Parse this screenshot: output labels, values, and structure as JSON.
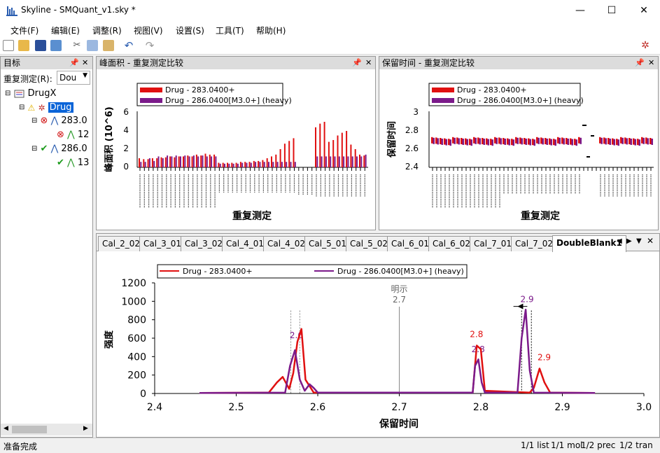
{
  "window": {
    "title": "Skyline - SMQuant_v1.sky *"
  },
  "menu": [
    "文件(F)",
    "编辑(E)",
    "调整(R)",
    "视图(V)",
    "设置(S)",
    "工具(T)",
    "帮助(H)"
  ],
  "targets": {
    "header": "目标",
    "replicate_label": "重复测定(R):",
    "replicate_value": "Dou",
    "tree": [
      "DrugX",
      "Drug",
      "283.0",
      "12",
      "286.0",
      "13"
    ]
  },
  "peak_area": {
    "header": "峰面积 - 重复测定比较",
    "legend": [
      "Drug - 283.0400+",
      "Drug - 286.0400[M3.0+] (heavy)"
    ],
    "ylabel": "峰面积 (10^6)",
    "xlabel": "重复测定",
    "yticks": [
      "0",
      "2",
      "4",
      "6"
    ]
  },
  "retention": {
    "header": "保留时间 - 重复测定比较",
    "legend": [
      "Drug - 283.0400+",
      "Drug - 286.0400[M3.0+] (heavy)"
    ],
    "ylabel": "保留时间",
    "xlabel": "重复测定",
    "yticks": [
      "2.4",
      "2.6",
      "2.8",
      "3"
    ]
  },
  "chromatogram": {
    "tabs": [
      "Cal_2_02",
      "Cal_3_01",
      "Cal_3_02",
      "Cal_4_01",
      "Cal_4_02",
      "Cal_5_01",
      "Cal_5_02",
      "Cal_6_01",
      "Cal_6_02",
      "Cal_7_01",
      "Cal_7_02",
      "DoubleBlank1"
    ],
    "legend": [
      "Drug - 283.0400+",
      "Drug - 286.0400[M3.0+] (heavy)"
    ],
    "ylabel": "强度",
    "xlabel": "保留时间",
    "yticks": [
      "0",
      "200",
      "400",
      "600",
      "800",
      "1000",
      "1200"
    ],
    "xticks": [
      "2.4",
      "2.5",
      "2.6",
      "2.7",
      "2.8",
      "2.9",
      "3.0"
    ],
    "annotation": "明示",
    "annotation_value": "2.7",
    "peak_labels": [
      "2.6",
      "2.8",
      "2.8",
      "2.9",
      "2.9"
    ]
  },
  "chart_data": {
    "type": "line",
    "xlabel": "保留时间",
    "ylabel": "强度",
    "xlim": [
      2.4,
      3.0
    ],
    "ylim": [
      0,
      1200
    ],
    "series": [
      {
        "name": "Drug - 283.0400+",
        "color": "#e01010",
        "x": [
          2.455,
          2.54,
          2.55,
          2.557,
          2.565,
          2.57,
          2.575,
          2.58,
          2.585,
          2.595,
          2.79,
          2.795,
          2.8,
          2.805,
          2.86,
          2.865,
          2.872,
          2.878,
          2.885,
          2.94
        ],
        "y": [
          5,
          10,
          120,
          180,
          50,
          220,
          560,
          700,
          150,
          10,
          10,
          520,
          480,
          30,
          10,
          60,
          270,
          120,
          10,
          5
        ]
      },
      {
        "name": "Drug - 286.0400[M3.0+] (heavy)",
        "color": "#7b1a8a",
        "x": [
          2.455,
          2.56,
          2.566,
          2.572,
          2.578,
          2.584,
          2.59,
          2.595,
          2.6,
          2.79,
          2.793,
          2.797,
          2.801,
          2.805,
          2.845,
          2.85,
          2.855,
          2.86,
          2.865,
          2.94
        ],
        "y": [
          5,
          10,
          300,
          470,
          150,
          30,
          100,
          60,
          10,
          10,
          300,
          370,
          120,
          10,
          10,
          600,
          910,
          250,
          10,
          5
        ]
      }
    ]
  },
  "status": {
    "left": "准备完成",
    "list": "1/1 list",
    "mol": "1/1 mol",
    "prec": "1/2 prec",
    "tran": "1/2 tran"
  },
  "colors": {
    "light": "#e01010",
    "heavy": "#7b1a8a"
  }
}
